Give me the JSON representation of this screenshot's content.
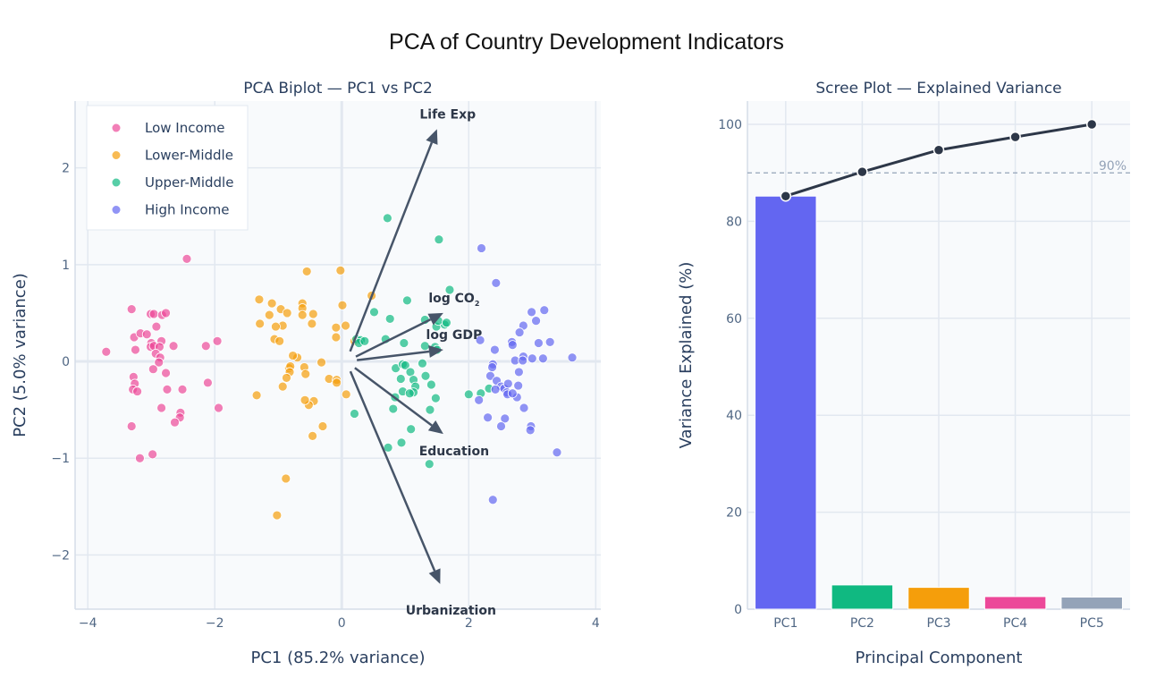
{
  "figure": {
    "title": "PCA of Country Development Indicators"
  },
  "chart_data": [
    {
      "type": "scatter",
      "title": "PCA Biplot — PC1 vs PC2",
      "xlabel": "PC1 (85.2% variance)",
      "ylabel": "PC2 (5.0% variance)",
      "xlim": [
        -4.2,
        4.08
      ],
      "ylim": [
        -2.56,
        2.69
      ],
      "xticks": [
        -4,
        -2,
        0,
        2,
        4
      ],
      "xtick_labels": [
        "−4",
        "−2",
        "0",
        "2",
        "4"
      ],
      "yticks": [
        -2,
        -1,
        0,
        1,
        2
      ],
      "ytick_labels": [
        "−2",
        "−1",
        "0",
        "1",
        "2"
      ],
      "grid": true,
      "legend_position": "top-left",
      "series": [
        {
          "name": "Low Income",
          "color": "#ec4899",
          "points": [
            [
              -2.44,
              1.06
            ],
            [
              -3.31,
              0.54
            ],
            [
              -3.01,
              0.49
            ],
            [
              -2.96,
              0.49
            ],
            [
              -3.27,
              0.25
            ],
            [
              -3.17,
              0.29
            ],
            [
              -3.07,
              0.28
            ],
            [
              -2.83,
              0.48
            ],
            [
              -2.77,
              0.5
            ],
            [
              -2.92,
              0.36
            ],
            [
              -3.0,
              0.19
            ],
            [
              -3.01,
              0.15
            ],
            [
              -2.96,
              0.16
            ],
            [
              -2.84,
              0.21
            ],
            [
              -2.87,
              0.15
            ],
            [
              -2.65,
              0.16
            ],
            [
              -2.14,
              0.16
            ],
            [
              -1.96,
              0.21
            ],
            [
              -3.71,
              0.1
            ],
            [
              -3.25,
              0.12
            ],
            [
              -2.93,
              0.08
            ],
            [
              -2.86,
              0.04
            ],
            [
              -2.88,
              -0.01
            ],
            [
              -3.28,
              -0.16
            ],
            [
              -3.26,
              -0.23
            ],
            [
              -3.29,
              -0.29
            ],
            [
              -3.22,
              -0.31
            ],
            [
              -2.97,
              -0.08
            ],
            [
              -2.77,
              -0.12
            ],
            [
              -2.75,
              -0.29
            ],
            [
              -2.51,
              -0.29
            ],
            [
              -2.11,
              -0.22
            ],
            [
              -2.84,
              -0.48
            ],
            [
              -2.54,
              -0.53
            ],
            [
              -2.55,
              -0.58
            ],
            [
              -2.63,
              -0.63
            ],
            [
              -1.94,
              -0.48
            ],
            [
              -3.31,
              -0.67
            ],
            [
              -2.98,
              -0.96
            ],
            [
              -3.18,
              -1.0
            ]
          ]
        },
        {
          "name": "Lower-Middle",
          "color": "#f59e0b",
          "points": [
            [
              -0.55,
              0.93
            ],
            [
              -0.02,
              0.94
            ],
            [
              -1.3,
              0.64
            ],
            [
              -1.1,
              0.6
            ],
            [
              -0.62,
              0.6
            ],
            [
              -0.62,
              0.55
            ],
            [
              -0.96,
              0.54
            ],
            [
              -1.14,
              0.48
            ],
            [
              -0.86,
              0.5
            ],
            [
              -0.62,
              0.48
            ],
            [
              -1.29,
              0.39
            ],
            [
              -0.93,
              0.37
            ],
            [
              -1.04,
              0.36
            ],
            [
              -0.45,
              0.49
            ],
            [
              -0.47,
              0.39
            ],
            [
              -0.09,
              0.35
            ],
            [
              -1.06,
              0.23
            ],
            [
              -0.98,
              0.21
            ],
            [
              0.06,
              0.37
            ],
            [
              0.01,
              0.58
            ],
            [
              0.47,
              0.68
            ],
            [
              0.2,
              0.21
            ],
            [
              -0.09,
              0.25
            ],
            [
              -0.7,
              0.04
            ],
            [
              -0.77,
              0.06
            ],
            [
              -0.32,
              -0.01
            ],
            [
              -0.83,
              -0.07
            ],
            [
              -0.81,
              -0.05
            ],
            [
              -0.82,
              -0.11
            ],
            [
              -0.59,
              -0.06
            ],
            [
              -0.87,
              -0.17
            ],
            [
              -0.57,
              -0.13
            ],
            [
              -1.34,
              -0.35
            ],
            [
              -0.93,
              -0.26
            ],
            [
              -0.44,
              -0.41
            ],
            [
              0.07,
              -0.34
            ],
            [
              -0.2,
              -0.18
            ],
            [
              -0.08,
              -0.19
            ],
            [
              -0.08,
              -0.22
            ],
            [
              -0.52,
              -0.45
            ],
            [
              -0.58,
              -0.4
            ],
            [
              -0.3,
              -0.67
            ],
            [
              -0.46,
              -0.77
            ],
            [
              -0.88,
              -1.21
            ],
            [
              -1.02,
              -1.59
            ]
          ]
        },
        {
          "name": "Upper-Middle",
          "color": "#10b981",
          "points": [
            [
              0.72,
              1.48
            ],
            [
              1.53,
              1.26
            ],
            [
              1.7,
              0.74
            ],
            [
              1.03,
              0.63
            ],
            [
              0.51,
              0.51
            ],
            [
              0.76,
              0.44
            ],
            [
              1.31,
              0.43
            ],
            [
              1.49,
              0.36
            ],
            [
              1.62,
              0.38
            ],
            [
              1.52,
              0.42
            ],
            [
              1.65,
              0.4
            ],
            [
              0.23,
              0.23
            ],
            [
              0.3,
              0.22
            ],
            [
              0.27,
              0.19
            ],
            [
              0.36,
              0.21
            ],
            [
              0.69,
              0.23
            ],
            [
              0.98,
              0.19
            ],
            [
              1.31,
              0.16
            ],
            [
              1.47,
              0.15
            ],
            [
              1.5,
              0.12
            ],
            [
              0.85,
              -0.07
            ],
            [
              0.96,
              -0.03
            ],
            [
              1.0,
              -0.04
            ],
            [
              1.08,
              -0.11
            ],
            [
              1.13,
              -0.19
            ],
            [
              1.27,
              -0.02
            ],
            [
              0.93,
              -0.18
            ],
            [
              1.32,
              -0.15
            ],
            [
              1.41,
              -0.24
            ],
            [
              0.84,
              -0.37
            ],
            [
              1.16,
              -0.26
            ],
            [
              1.48,
              -0.38
            ],
            [
              0.96,
              -0.31
            ],
            [
              1.13,
              -0.32
            ],
            [
              1.07,
              -0.33
            ],
            [
              0.81,
              -0.49
            ],
            [
              1.39,
              -0.5
            ],
            [
              2.0,
              -0.34
            ],
            [
              1.09,
              -0.7
            ],
            [
              0.73,
              -0.89
            ],
            [
              0.94,
              -0.84
            ],
            [
              1.38,
              -1.06
            ],
            [
              2.32,
              -0.28
            ],
            [
              2.19,
              -0.33
            ],
            [
              0.2,
              -0.54
            ]
          ]
        },
        {
          "name": "High Income",
          "color": "#6366f1",
          "points": [
            [
              2.2,
              1.17
            ],
            [
              2.43,
              0.81
            ],
            [
              2.99,
              0.51
            ],
            [
              3.19,
              0.53
            ],
            [
              2.86,
              0.37
            ],
            [
              3.06,
              0.42
            ],
            [
              2.8,
              0.3
            ],
            [
              2.18,
              0.22
            ],
            [
              2.68,
              0.2
            ],
            [
              2.69,
              0.17
            ],
            [
              3.1,
              0.19
            ],
            [
              3.28,
              0.2
            ],
            [
              3.63,
              0.04
            ],
            [
              2.41,
              0.12
            ],
            [
              2.73,
              0.01
            ],
            [
              2.86,
              0.05
            ],
            [
              2.85,
              0.01
            ],
            [
              3.0,
              0.03
            ],
            [
              3.17,
              0.03
            ],
            [
              2.79,
              -0.11
            ],
            [
              2.38,
              -0.03
            ],
            [
              2.37,
              -0.06
            ],
            [
              2.34,
              -0.15
            ],
            [
              2.44,
              -0.2
            ],
            [
              2.51,
              -0.26
            ],
            [
              2.56,
              -0.28
            ],
            [
              2.62,
              -0.23
            ],
            [
              2.78,
              -0.25
            ],
            [
              2.76,
              -0.37
            ],
            [
              2.42,
              -0.29
            ],
            [
              2.6,
              -0.32
            ],
            [
              2.61,
              -0.34
            ],
            [
              2.69,
              -0.33
            ],
            [
              2.16,
              -0.4
            ],
            [
              2.87,
              -0.48
            ],
            [
              2.57,
              -0.59
            ],
            [
              2.3,
              -0.58
            ],
            [
              2.51,
              -0.67
            ],
            [
              2.98,
              -0.67
            ],
            [
              2.97,
              -0.71
            ],
            [
              3.39,
              -0.94
            ],
            [
              2.38,
              -1.43
            ]
          ]
        }
      ],
      "loadings": [
        {
          "name": "Life Exp",
          "label": "Life Exp",
          "x": 1.5,
          "y": 2.4
        },
        {
          "name": "log CO2",
          "label": "log CO",
          "subscript": "2",
          "x": 1.6,
          "y": 0.5
        },
        {
          "name": "log GDP",
          "label": "log GDP",
          "x": 1.6,
          "y": 0.12
        },
        {
          "name": "Education",
          "label": "Education",
          "x": 1.6,
          "y": -0.75
        },
        {
          "name": "Urbanization",
          "label": "Urbanization",
          "x": 1.55,
          "y": -2.3
        }
      ],
      "loading_color": "#475569"
    },
    {
      "type": "bar",
      "title": "Scree Plot — Explained Variance",
      "xlabel": "Principal Component",
      "ylabel": "Variance Explained (%)",
      "categories": [
        "PC1",
        "PC2",
        "PC3",
        "PC4",
        "PC5"
      ],
      "values": [
        85.2,
        5.0,
        4.5,
        2.6,
        2.5
      ],
      "bar_colors": [
        "#6366f1",
        "#10b981",
        "#f59e0b",
        "#ec4899",
        "#94a3b8"
      ],
      "cumulative": {
        "name": "Cumulative",
        "values": [
          85.2,
          90.2,
          94.7,
          97.4,
          100.0
        ],
        "color": "#2d3748"
      },
      "reference_line": {
        "value": 90,
        "label": "90%",
        "color": "#94a3b8"
      },
      "ylim": [
        0,
        104.8
      ],
      "yticks": [
        0,
        20,
        40,
        60,
        80,
        100
      ],
      "grid": true
    }
  ]
}
